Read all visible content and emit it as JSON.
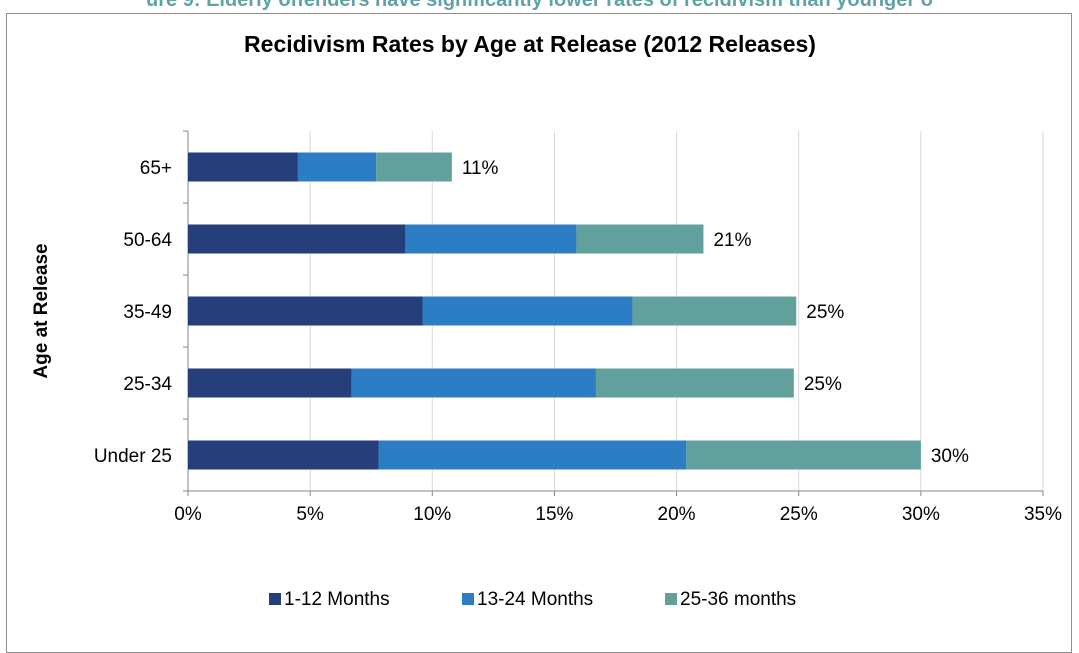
{
  "caption": "ure 9: Elderly offenders have significantly lower rates of recidivism than younger o",
  "chart_data": {
    "type": "bar",
    "orientation": "horizontal",
    "stacked": true,
    "title": "Recidivism Rates by Age at Release (2012 Releases)",
    "ylabel": "Age at Release",
    "xlabel": "",
    "xlim": [
      0,
      35
    ],
    "x_ticks": [
      "0%",
      "5%",
      "10%",
      "15%",
      "20%",
      "25%",
      "30%",
      "35%"
    ],
    "grid": "vertical",
    "legend_position": "bottom",
    "categories": [
      "65+",
      "50-64",
      "35-49",
      "25-34",
      "Under 25"
    ],
    "series": [
      {
        "name": "1-12 Months",
        "color": "#243f7a",
        "values": [
          4.5,
          8.9,
          9.6,
          6.7,
          7.8
        ]
      },
      {
        "name": "13-24 Months",
        "color": "#2c7dc4",
        "values": [
          3.2,
          7.0,
          8.6,
          10.0,
          12.6
        ]
      },
      {
        "name": "25-36 months",
        "color": "#62a09d",
        "values": [
          3.1,
          5.2,
          6.7,
          8.1,
          9.6
        ]
      }
    ],
    "totals": [
      "11%",
      "21%",
      "25%",
      "25%",
      "30%"
    ]
  }
}
